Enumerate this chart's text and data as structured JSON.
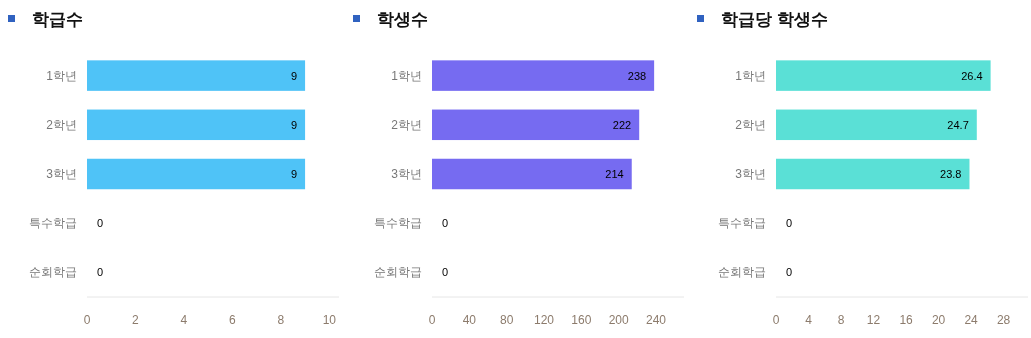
{
  "chart_data": [
    {
      "type": "bar",
      "orientation": "horizontal",
      "title": "학급수",
      "categories": [
        "1학년",
        "2학년",
        "3학년",
        "특수학급",
        "순회학급"
      ],
      "values": [
        9,
        9,
        9,
        0,
        0
      ],
      "color": "#4fc3f7",
      "xlim": [
        0,
        10.4
      ],
      "xticks": [
        0,
        2,
        4,
        6,
        8,
        10
      ],
      "data_labels": true,
      "grid": false
    },
    {
      "type": "bar",
      "orientation": "horizontal",
      "title": "학생수",
      "categories": [
        "1학년",
        "2학년",
        "3학년",
        "특수학급",
        "순회학급"
      ],
      "values": [
        238,
        222,
        214,
        0,
        0
      ],
      "color": "#766bf1",
      "xlim": [
        0,
        270
      ],
      "xticks": [
        0,
        40,
        80,
        120,
        160,
        200,
        240
      ],
      "data_labels": true,
      "grid": false
    },
    {
      "type": "bar",
      "orientation": "horizontal",
      "title": "학급당 학생수",
      "categories": [
        "1학년",
        "2학년",
        "3학년",
        "특수학급",
        "순회학급"
      ],
      "values": [
        26.4,
        24.7,
        23.8,
        0,
        0
      ],
      "color": "#5ae0d6",
      "xlim": [
        0,
        31
      ],
      "xticks": [
        0,
        4,
        8,
        12,
        16,
        20,
        24,
        28
      ],
      "data_labels": true,
      "grid": false
    }
  ]
}
